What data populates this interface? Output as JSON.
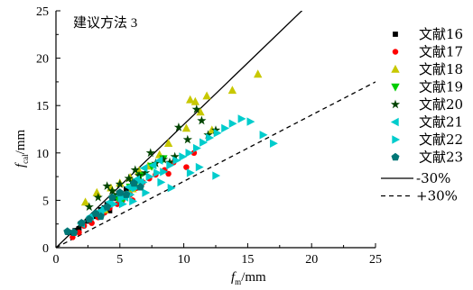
{
  "chart_data": {
    "type": "scatter",
    "title": "建议方法 3",
    "xlabel": {
      "main": "f",
      "sub": "m",
      "unit": "/mm"
    },
    "ylabel": {
      "main": "f",
      "sub": "cal",
      "unit": "/mm"
    },
    "xlim": [
      0,
      25
    ],
    "ylim": [
      0,
      25
    ],
    "xticks": [
      0,
      5,
      10,
      15,
      20,
      25
    ],
    "yticks": [
      0,
      5,
      10,
      15,
      20,
      25
    ],
    "grid": false,
    "legend_position": "right",
    "series": [
      {
        "name": "文献16",
        "color": "#000000",
        "marker": "square",
        "points": [
          [
            1.0,
            1.6
          ],
          [
            1.5,
            1.8
          ],
          [
            1.8,
            2.0
          ],
          [
            2.5,
            2.8
          ],
          [
            3.0,
            3.3
          ],
          [
            3.5,
            4.0
          ],
          [
            4.0,
            4.6
          ],
          [
            4.5,
            5.2
          ],
          [
            5.0,
            5.8
          ],
          [
            5.5,
            6.2
          ],
          [
            6.0,
            6.8
          ],
          [
            3.8,
            4.2
          ],
          [
            4.2,
            3.9
          ]
        ]
      },
      {
        "name": "文献17",
        "color": "#ff0000",
        "marker": "circle",
        "points": [
          [
            1.3,
            1.1
          ],
          [
            1.8,
            1.6
          ],
          [
            2.2,
            2.3
          ],
          [
            2.8,
            2.6
          ],
          [
            3.3,
            3.2
          ],
          [
            3.8,
            3.7
          ],
          [
            4.2,
            4.2
          ],
          [
            4.8,
            4.6
          ],
          [
            5.2,
            5.0
          ],
          [
            5.8,
            5.6
          ],
          [
            6.3,
            6.3
          ],
          [
            6.8,
            6.9
          ],
          [
            7.3,
            7.3
          ],
          [
            7.8,
            7.7
          ],
          [
            8.5,
            8.2
          ],
          [
            9.2,
            9.0
          ],
          [
            10.2,
            8.5
          ],
          [
            10.8,
            10.0
          ],
          [
            8.8,
            7.8
          ],
          [
            6.0,
            5.0
          ]
        ]
      },
      {
        "name": "文献18",
        "color": "#c8c800",
        "marker": "triangle-up",
        "points": [
          [
            2.3,
            4.8
          ],
          [
            3.2,
            5.8
          ],
          [
            4.3,
            6.3
          ],
          [
            5.0,
            6.8
          ],
          [
            5.8,
            7.4
          ],
          [
            6.5,
            8.1
          ],
          [
            7.2,
            8.6
          ],
          [
            8.1,
            9.8
          ],
          [
            8.8,
            11.0
          ],
          [
            10.5,
            15.6
          ],
          [
            10.9,
            15.4
          ],
          [
            11.3,
            14.3
          ],
          [
            11.8,
            16.0
          ],
          [
            13.8,
            16.6
          ],
          [
            15.8,
            18.3
          ],
          [
            10.2,
            12.6
          ],
          [
            12.2,
            12.4
          ],
          [
            6.0,
            6.2
          ],
          [
            3.8,
            4.0
          ]
        ]
      },
      {
        "name": "文献19",
        "color": "#00cc00",
        "marker": "triangle-down",
        "points": [
          [
            4.8,
            5.3
          ],
          [
            5.8,
            6.4
          ],
          [
            6.6,
            7.6
          ],
          [
            7.5,
            8.6
          ],
          [
            8.4,
            9.4
          ],
          [
            5.2,
            5.0
          ],
          [
            6.2,
            6.7
          ]
        ]
      },
      {
        "name": "文献20",
        "color": "#004400",
        "marker": "star",
        "points": [
          [
            2.0,
            2.5
          ],
          [
            2.6,
            4.3
          ],
          [
            3.3,
            5.3
          ],
          [
            4.0,
            6.5
          ],
          [
            4.4,
            6.0
          ],
          [
            5.0,
            6.7
          ],
          [
            5.7,
            7.3
          ],
          [
            6.2,
            8.2
          ],
          [
            6.5,
            7.6
          ],
          [
            7.0,
            7.9
          ],
          [
            7.4,
            10.0
          ],
          [
            7.8,
            8.9
          ],
          [
            8.4,
            9.3
          ],
          [
            8.9,
            9.0
          ],
          [
            9.3,
            9.6
          ],
          [
            9.6,
            12.7
          ],
          [
            10.3,
            11.4
          ],
          [
            11.0,
            14.6
          ],
          [
            11.4,
            13.4
          ],
          [
            11.9,
            11.9
          ],
          [
            12.5,
            12.4
          ],
          [
            4.8,
            5.6
          ],
          [
            6.0,
            6.9
          ]
        ]
      },
      {
        "name": "文献21",
        "color": "#00cccc",
        "marker": "triangle-left",
        "points": [
          [
            2.0,
            2.5
          ],
          [
            2.7,
            3.3
          ],
          [
            3.5,
            3.9
          ],
          [
            4.2,
            4.8
          ],
          [
            5.0,
            5.5
          ],
          [
            5.7,
            6.4
          ],
          [
            6.3,
            7.2
          ],
          [
            6.9,
            8.4
          ],
          [
            7.6,
            8.7
          ],
          [
            8.1,
            9.2
          ],
          [
            5.4,
            5.3
          ],
          [
            6.6,
            6.9
          ]
        ]
      },
      {
        "name": "文献22",
        "color": "#00cccc",
        "marker": "triangle-right",
        "points": [
          [
            3.8,
            4.0
          ],
          [
            4.5,
            4.6
          ],
          [
            5.1,
            5.2
          ],
          [
            5.8,
            5.6
          ],
          [
            6.2,
            6.3
          ],
          [
            6.8,
            6.9
          ],
          [
            7.3,
            7.5
          ],
          [
            7.9,
            7.9
          ],
          [
            8.4,
            8.0
          ],
          [
            8.9,
            8.7
          ],
          [
            9.4,
            9.2
          ],
          [
            9.9,
            9.6
          ],
          [
            10.4,
            10.0
          ],
          [
            11.0,
            10.5
          ],
          [
            11.5,
            11.1
          ],
          [
            12.0,
            11.6
          ],
          [
            12.6,
            12.1
          ],
          [
            13.2,
            12.6
          ],
          [
            13.8,
            13.1
          ],
          [
            14.5,
            13.6
          ],
          [
            15.2,
            13.3
          ],
          [
            16.2,
            11.9
          ],
          [
            17.0,
            11.0
          ],
          [
            11.2,
            8.5
          ],
          [
            12.5,
            7.6
          ],
          [
            9.0,
            6.3
          ],
          [
            7.0,
            5.8
          ],
          [
            6.0,
            4.9
          ],
          [
            5.2,
            4.6
          ],
          [
            10.5,
            7.9
          ],
          [
            8.2,
            6.9
          ]
        ]
      },
      {
        "name": "文献23",
        "color": "#007777",
        "marker": "pentagon",
        "points": [
          [
            0.9,
            1.7
          ],
          [
            1.4,
            1.6
          ],
          [
            2.0,
            2.6
          ],
          [
            2.6,
            3.0
          ],
          [
            3.1,
            3.6
          ],
          [
            3.5,
            3.3
          ],
          [
            4.0,
            4.3
          ],
          [
            4.4,
            5.3
          ],
          [
            5.0,
            5.8
          ],
          [
            5.5,
            5.6
          ],
          [
            6.1,
            6.8
          ],
          [
            6.6,
            6.4
          ]
        ]
      }
    ],
    "reference_lines": [
      {
        "name": "-30%",
        "style": "solid",
        "slope": 1.3
      },
      {
        "name": "+30%",
        "style": "dashed",
        "slope": 0.7
      }
    ]
  }
}
